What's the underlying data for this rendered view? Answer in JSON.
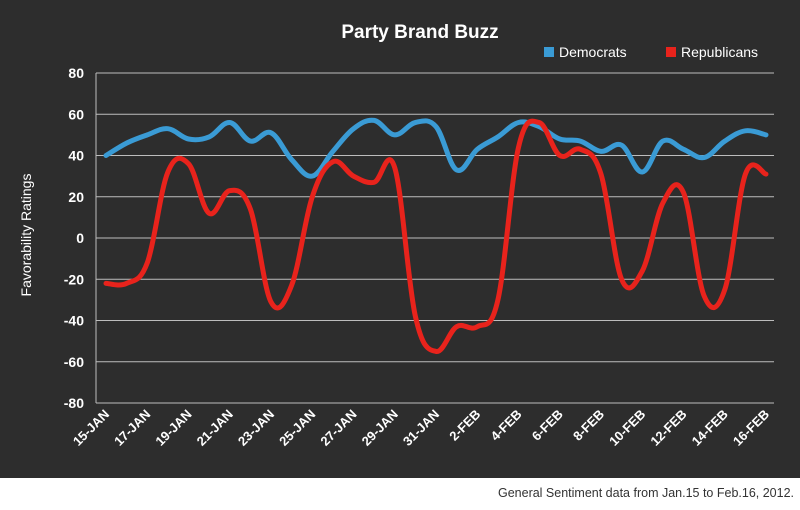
{
  "chart_data": {
    "type": "line",
    "title": "Party Brand Buzz",
    "xlabel": "",
    "ylabel": "Favorability Ratings",
    "ylim": [
      -80,
      80
    ],
    "yticks": [
      -80,
      -60,
      -40,
      -20,
      0,
      20,
      40,
      60,
      80
    ],
    "grid": true,
    "legend_position": "top-right",
    "x_tick_labels": [
      "15-JAN",
      "17-JAN",
      "19-JAN",
      "21-JAN",
      "23-JAN",
      "25-JAN",
      "27-JAN",
      "29-JAN",
      "31-JAN",
      "2-FEB",
      "4-FEB",
      "6-FEB",
      "8-FEB",
      "10-FEB",
      "12-FEB",
      "14-FEB",
      "16-FEB"
    ],
    "series": [
      {
        "name": "Democrats",
        "color": "#3a9bd5",
        "points": [
          [
            "15-JAN",
            40
          ],
          [
            "16-JAN",
            46
          ],
          [
            "17-JAN",
            50
          ],
          [
            "18-JAN",
            53
          ],
          [
            "19-JAN",
            48
          ],
          [
            "20-JAN",
            49
          ],
          [
            "21-JAN",
            56
          ],
          [
            "22-JAN",
            47
          ],
          [
            "23-JAN",
            51
          ],
          [
            "24-JAN",
            38
          ],
          [
            "25-JAN",
            30
          ],
          [
            "26-JAN",
            42
          ],
          [
            "27-JAN",
            53
          ],
          [
            "28-JAN",
            57
          ],
          [
            "29-JAN",
            50
          ],
          [
            "30-JAN",
            56
          ],
          [
            "31-JAN",
            54
          ],
          [
            "1-FEB",
            33
          ],
          [
            "2-FEB",
            43
          ],
          [
            "3-FEB",
            49
          ],
          [
            "4-FEB",
            56
          ],
          [
            "5-FEB",
            54
          ],
          [
            "6-FEB",
            48
          ],
          [
            "7-FEB",
            47
          ],
          [
            "8-FEB",
            42
          ],
          [
            "9-FEB",
            45
          ],
          [
            "10-FEB",
            32
          ],
          [
            "11-FEB",
            47
          ],
          [
            "12-FEB",
            43
          ],
          [
            "13-FEB",
            39
          ],
          [
            "14-FEB",
            47
          ],
          [
            "15-FEB",
            52
          ],
          [
            "16-FEB",
            50
          ]
        ]
      },
      {
        "name": "Republicans",
        "color": "#e8231c",
        "points": [
          [
            "15-JAN",
            -22
          ],
          [
            "16-JAN",
            -22
          ],
          [
            "17-JAN",
            -12
          ],
          [
            "18-JAN",
            32
          ],
          [
            "19-JAN",
            36
          ],
          [
            "20-JAN",
            12
          ],
          [
            "21-JAN",
            23
          ],
          [
            "22-JAN",
            14
          ],
          [
            "23-JAN",
            -31
          ],
          [
            "24-JAN",
            -23
          ],
          [
            "25-JAN",
            20
          ],
          [
            "26-JAN",
            37
          ],
          [
            "27-JAN",
            30
          ],
          [
            "28-JAN",
            27
          ],
          [
            "29-JAN",
            34
          ],
          [
            "30-JAN",
            -38
          ],
          [
            "31-JAN",
            -55
          ],
          [
            "1-FEB",
            -43
          ],
          [
            "2-FEB",
            -43
          ],
          [
            "3-FEB",
            -30
          ],
          [
            "4-FEB",
            44
          ],
          [
            "5-FEB",
            56
          ],
          [
            "6-FEB",
            40
          ],
          [
            "7-FEB",
            43
          ],
          [
            "8-FEB",
            31
          ],
          [
            "9-FEB",
            -20
          ],
          [
            "10-FEB",
            -16
          ],
          [
            "11-FEB",
            17
          ],
          [
            "12-FEB",
            22
          ],
          [
            "13-FEB",
            -28
          ],
          [
            "14-FEB",
            -25
          ],
          [
            "15-FEB",
            31
          ],
          [
            "16-FEB",
            31
          ]
        ]
      }
    ]
  },
  "caption": "General Sentiment data from Jan.15 to Feb.16, 2012."
}
